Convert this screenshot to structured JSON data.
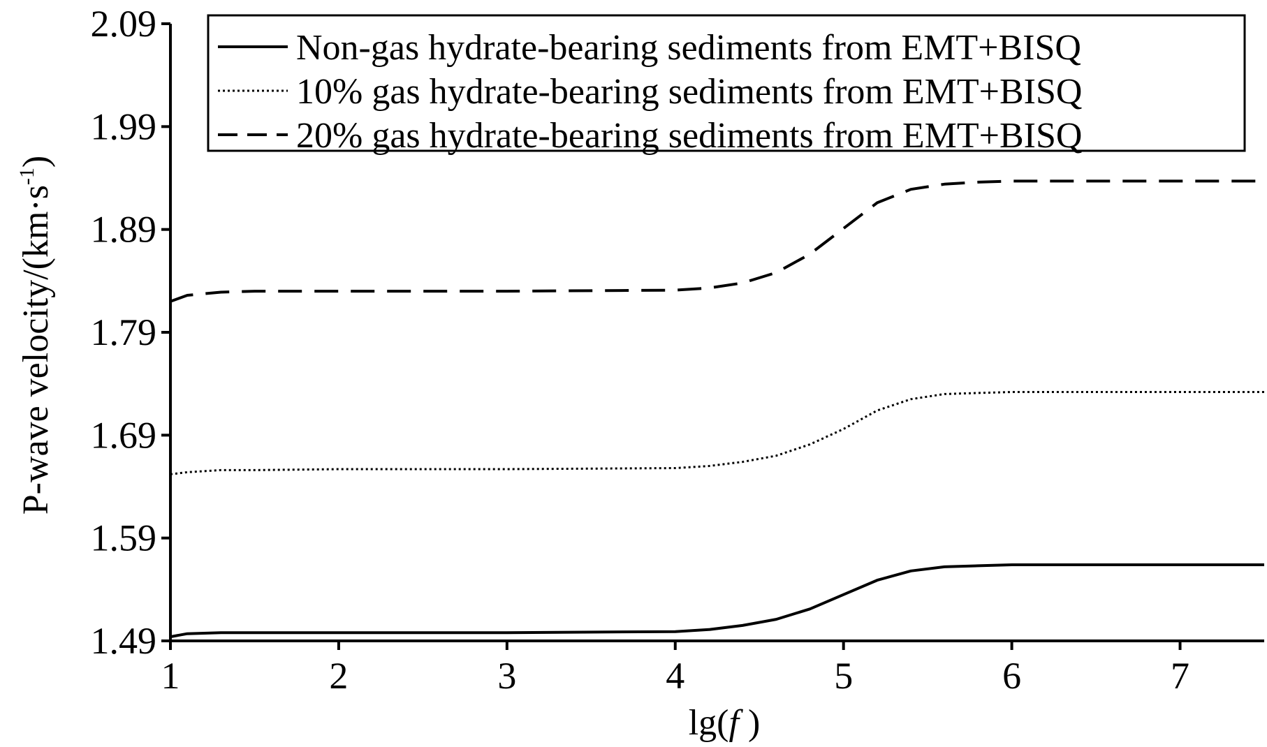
{
  "chart_data": {
    "type": "line",
    "title": "",
    "xlabel_prefix": "lg(",
    "xlabel_var": "f",
    "xlabel_suffix": " )",
    "ylabel_main": "P-wave velocity/(km·s",
    "ylabel_sup": "-1",
    "ylabel_close": ")",
    "xlim": [
      1,
      7.5
    ],
    "ylim": [
      1.49,
      2.09
    ],
    "x_ticks": [
      "1",
      "2",
      "3",
      "4",
      "5",
      "6",
      "7"
    ],
    "y_ticks": [
      "1.49",
      "1.59",
      "1.69",
      "1.79",
      "1.89",
      "1.99",
      "2.09"
    ],
    "grid": false,
    "legend_position": "top-right",
    "series": [
      {
        "name": "Non-gas hydrate-bearing sediments from EMT+BISQ",
        "style": "solid",
        "x": [
          1.0,
          1.1,
          1.3,
          1.5,
          2.0,
          3.0,
          4.0,
          4.2,
          4.4,
          4.6,
          4.8,
          5.0,
          5.2,
          5.4,
          5.6,
          5.8,
          6.0,
          6.5,
          7.0,
          7.5
        ],
        "y": [
          1.494,
          1.497,
          1.498,
          1.498,
          1.498,
          1.498,
          1.499,
          1.501,
          1.505,
          1.511,
          1.521,
          1.535,
          1.549,
          1.558,
          1.562,
          1.563,
          1.564,
          1.564,
          1.564,
          1.564
        ]
      },
      {
        "name": "10% gas hydrate-bearing sediments from EMT+BISQ",
        "style": "dotted",
        "x": [
          1.0,
          1.1,
          1.3,
          1.5,
          2.0,
          3.0,
          4.0,
          4.2,
          4.4,
          4.6,
          4.8,
          5.0,
          5.2,
          5.4,
          5.6,
          5.8,
          6.0,
          6.5,
          7.0,
          7.5
        ],
        "y": [
          1.652,
          1.654,
          1.656,
          1.656,
          1.657,
          1.657,
          1.658,
          1.66,
          1.664,
          1.67,
          1.681,
          1.696,
          1.714,
          1.725,
          1.73,
          1.731,
          1.732,
          1.732,
          1.732,
          1.732
        ]
      },
      {
        "name": "20% gas hydrate-bearing sediments from EMT+BISQ",
        "style": "dashed",
        "x": [
          1.0,
          1.1,
          1.3,
          1.5,
          2.0,
          3.0,
          4.0,
          4.2,
          4.4,
          4.6,
          4.8,
          5.0,
          5.2,
          5.4,
          5.6,
          5.8,
          6.0,
          6.5,
          7.0,
          7.5
        ],
        "y": [
          1.82,
          1.826,
          1.829,
          1.83,
          1.83,
          1.83,
          1.831,
          1.833,
          1.838,
          1.848,
          1.866,
          1.891,
          1.916,
          1.929,
          1.934,
          1.936,
          1.937,
          1.937,
          1.937,
          1.937
        ]
      }
    ]
  }
}
